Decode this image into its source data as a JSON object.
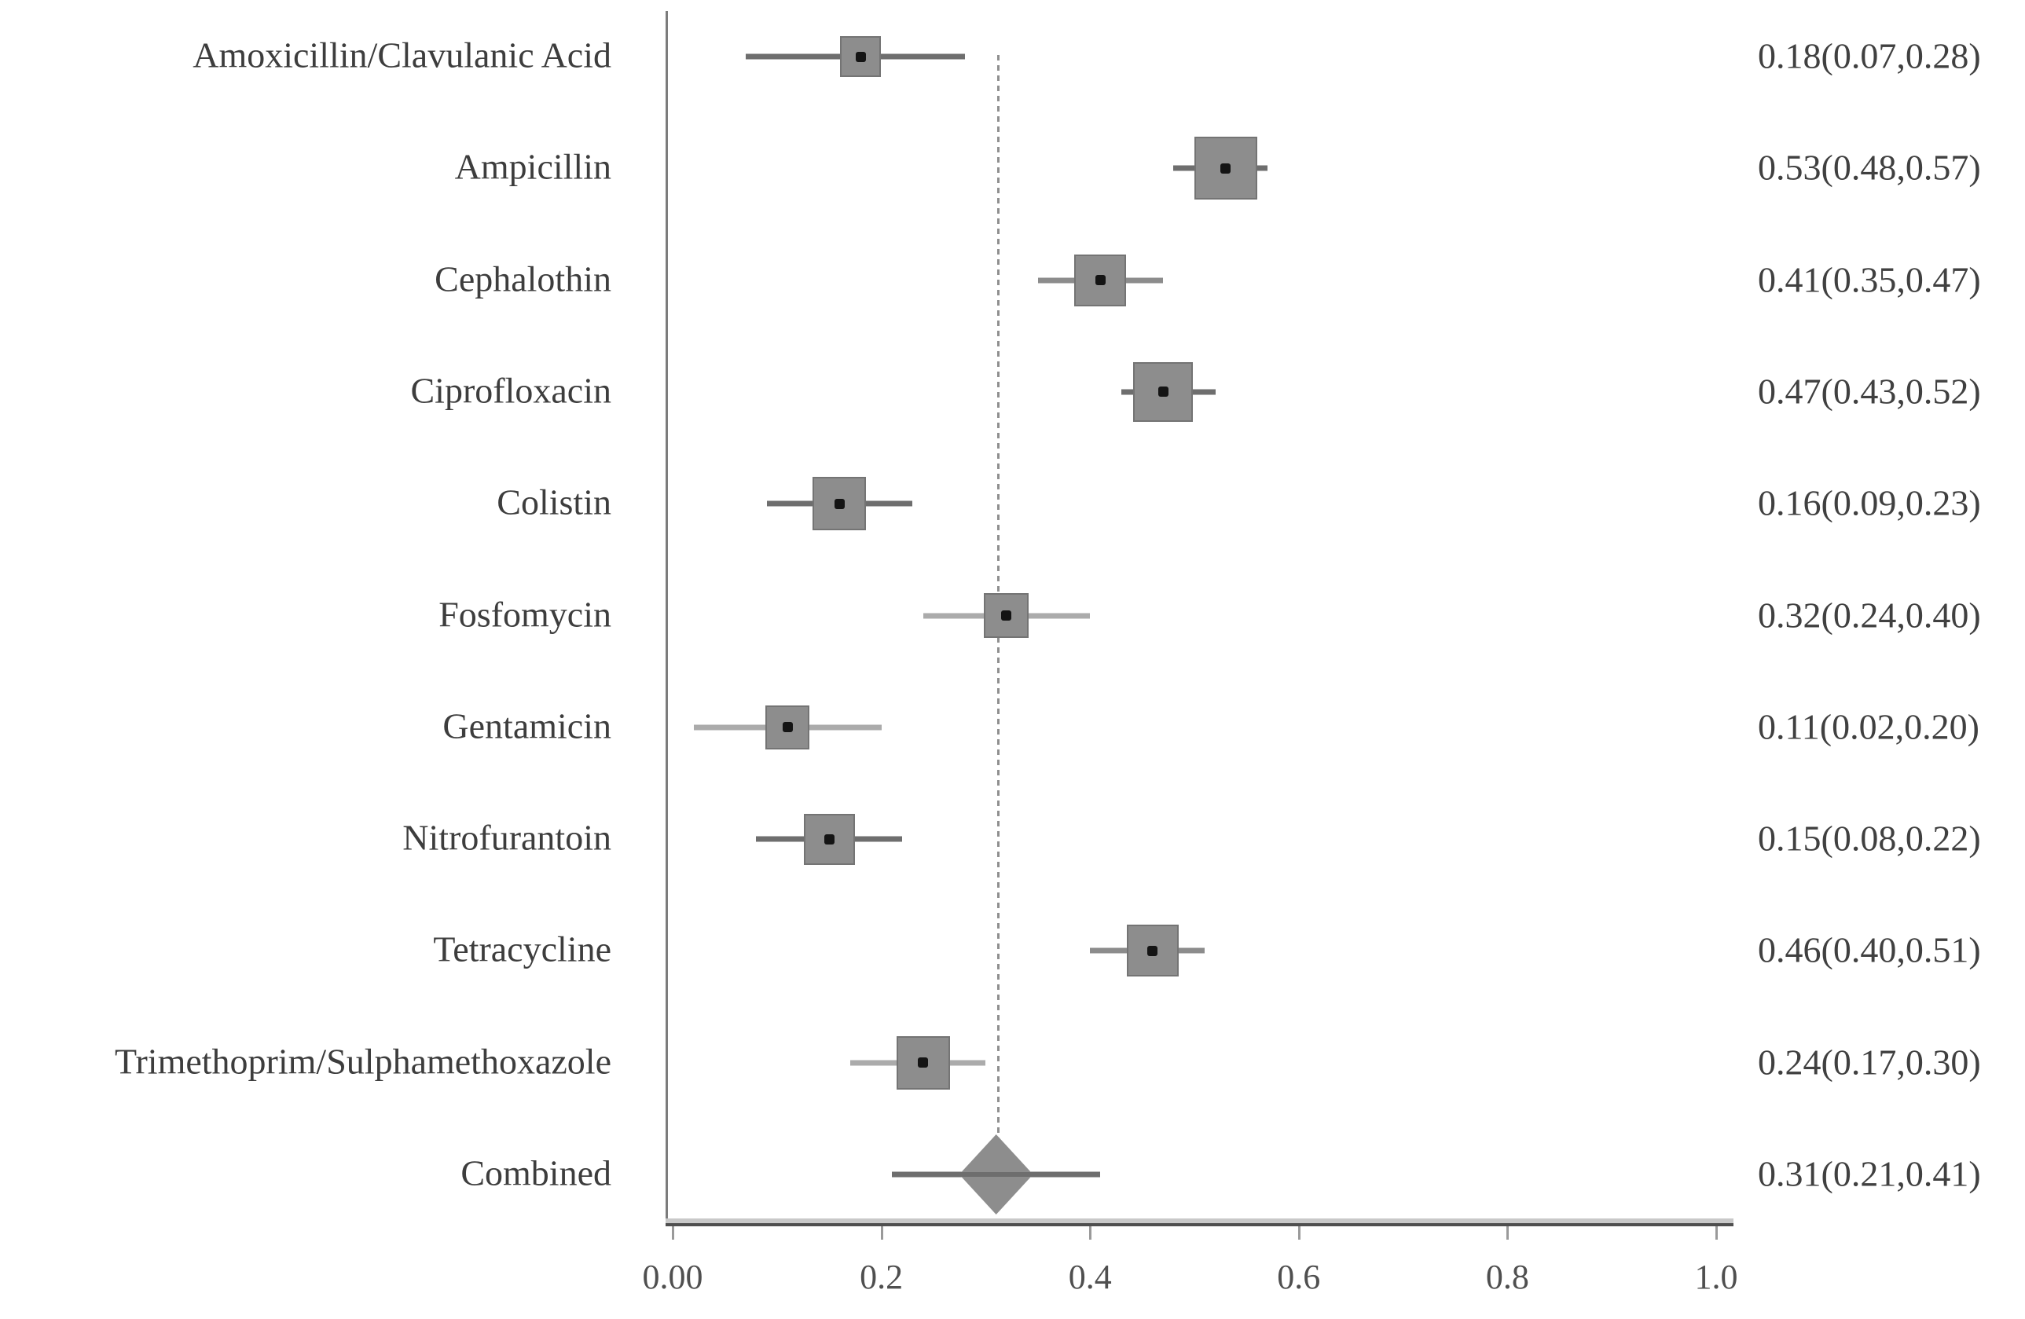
{
  "figure": {
    "background": "#ffffff"
  },
  "chart_data": {
    "type": "forest",
    "title": "",
    "x_axis": {
      "range": [
        0,
        1.0
      ],
      "ticks": [
        {
          "label": "0.00",
          "value": 0
        },
        {
          "label": "0.2",
          "value": 0.2
        },
        {
          "label": "0.4",
          "value": 0.4
        },
        {
          "label": "0.6",
          "value": 0.6
        },
        {
          "label": "0.8",
          "value": 0.8
        },
        {
          "label": "1.0",
          "value": 1.0
        }
      ]
    },
    "reference_line": {
      "value": 0.31,
      "style": "dashed"
    },
    "rows": [
      {
        "label": "Amoxicillin/Clavulanic Acid",
        "estimate": 0.18,
        "ci_low": 0.07,
        "ci_high": 0.28,
        "value_text": "0.18(0.07,0.28)",
        "marker": "square",
        "marker_size": 52,
        "ci_tone": "dark"
      },
      {
        "label": "Ampicillin",
        "estimate": 0.53,
        "ci_low": 0.48,
        "ci_high": 0.57,
        "value_text": "0.53(0.48,0.57)",
        "marker": "square",
        "marker_size": 80,
        "ci_tone": "dark"
      },
      {
        "label": "Cephalothin",
        "estimate": 0.41,
        "ci_low": 0.35,
        "ci_high": 0.47,
        "value_text": "0.41(0.35,0.47)",
        "marker": "square",
        "marker_size": 66,
        "ci_tone": "medium"
      },
      {
        "label": "Ciprofloxacin",
        "estimate": 0.47,
        "ci_low": 0.43,
        "ci_high": 0.52,
        "value_text": "0.47(0.43,0.52)",
        "marker": "square",
        "marker_size": 76,
        "ci_tone": "dark"
      },
      {
        "label": "Colistin",
        "estimate": 0.16,
        "ci_low": 0.09,
        "ci_high": 0.23,
        "value_text": "0.16(0.09,0.23)",
        "marker": "square",
        "marker_size": 68,
        "ci_tone": "dark"
      },
      {
        "label": "Fosfomycin",
        "estimate": 0.32,
        "ci_low": 0.24,
        "ci_high": 0.4,
        "value_text": "0.32(0.24,0.40)",
        "marker": "square",
        "marker_size": 57,
        "ci_tone": "light"
      },
      {
        "label": "Gentamicin",
        "estimate": 0.11,
        "ci_low": 0.02,
        "ci_high": 0.2,
        "value_text": "0.11(0.02,0.20)",
        "marker": "square",
        "marker_size": 56,
        "ci_tone": "light"
      },
      {
        "label": "Nitrofurantoin",
        "estimate": 0.15,
        "ci_low": 0.08,
        "ci_high": 0.22,
        "value_text": "0.15(0.08,0.22)",
        "marker": "square",
        "marker_size": 65,
        "ci_tone": "dark"
      },
      {
        "label": "Tetracycline",
        "estimate": 0.46,
        "ci_low": 0.4,
        "ci_high": 0.51,
        "value_text": "0.46(0.40,0.51)",
        "marker": "square",
        "marker_size": 66,
        "ci_tone": "medium"
      },
      {
        "label": "Trimethoprim/Sulphamethoxazole",
        "estimate": 0.24,
        "ci_low": 0.17,
        "ci_high": 0.3,
        "value_text": "0.24(0.17,0.30)",
        "marker": "square",
        "marker_size": 68,
        "ci_tone": "light"
      },
      {
        "label": "Combined",
        "estimate": 0.31,
        "ci_low": 0.21,
        "ci_high": 0.41,
        "value_text": "0.31(0.21,0.41)",
        "marker": "diamond",
        "marker_size": 96,
        "ci_tone": "dark"
      }
    ],
    "legend": null,
    "grid": false,
    "colors": {
      "marker_fill": "#8d8d8d",
      "marker_border": "#747474",
      "dot": "#141414",
      "axis_line": "#7c7c7c",
      "axis_dark": "#4f4f4f",
      "axis_light": "#c9c9c9",
      "tick": "#9a9a9a",
      "text": "#3d3d3d",
      "ref_line": "#8f8f8f",
      "ci_dark": "#6e6e6e",
      "ci_medium": "#8c8c8c",
      "ci_light": "#ababab"
    }
  }
}
